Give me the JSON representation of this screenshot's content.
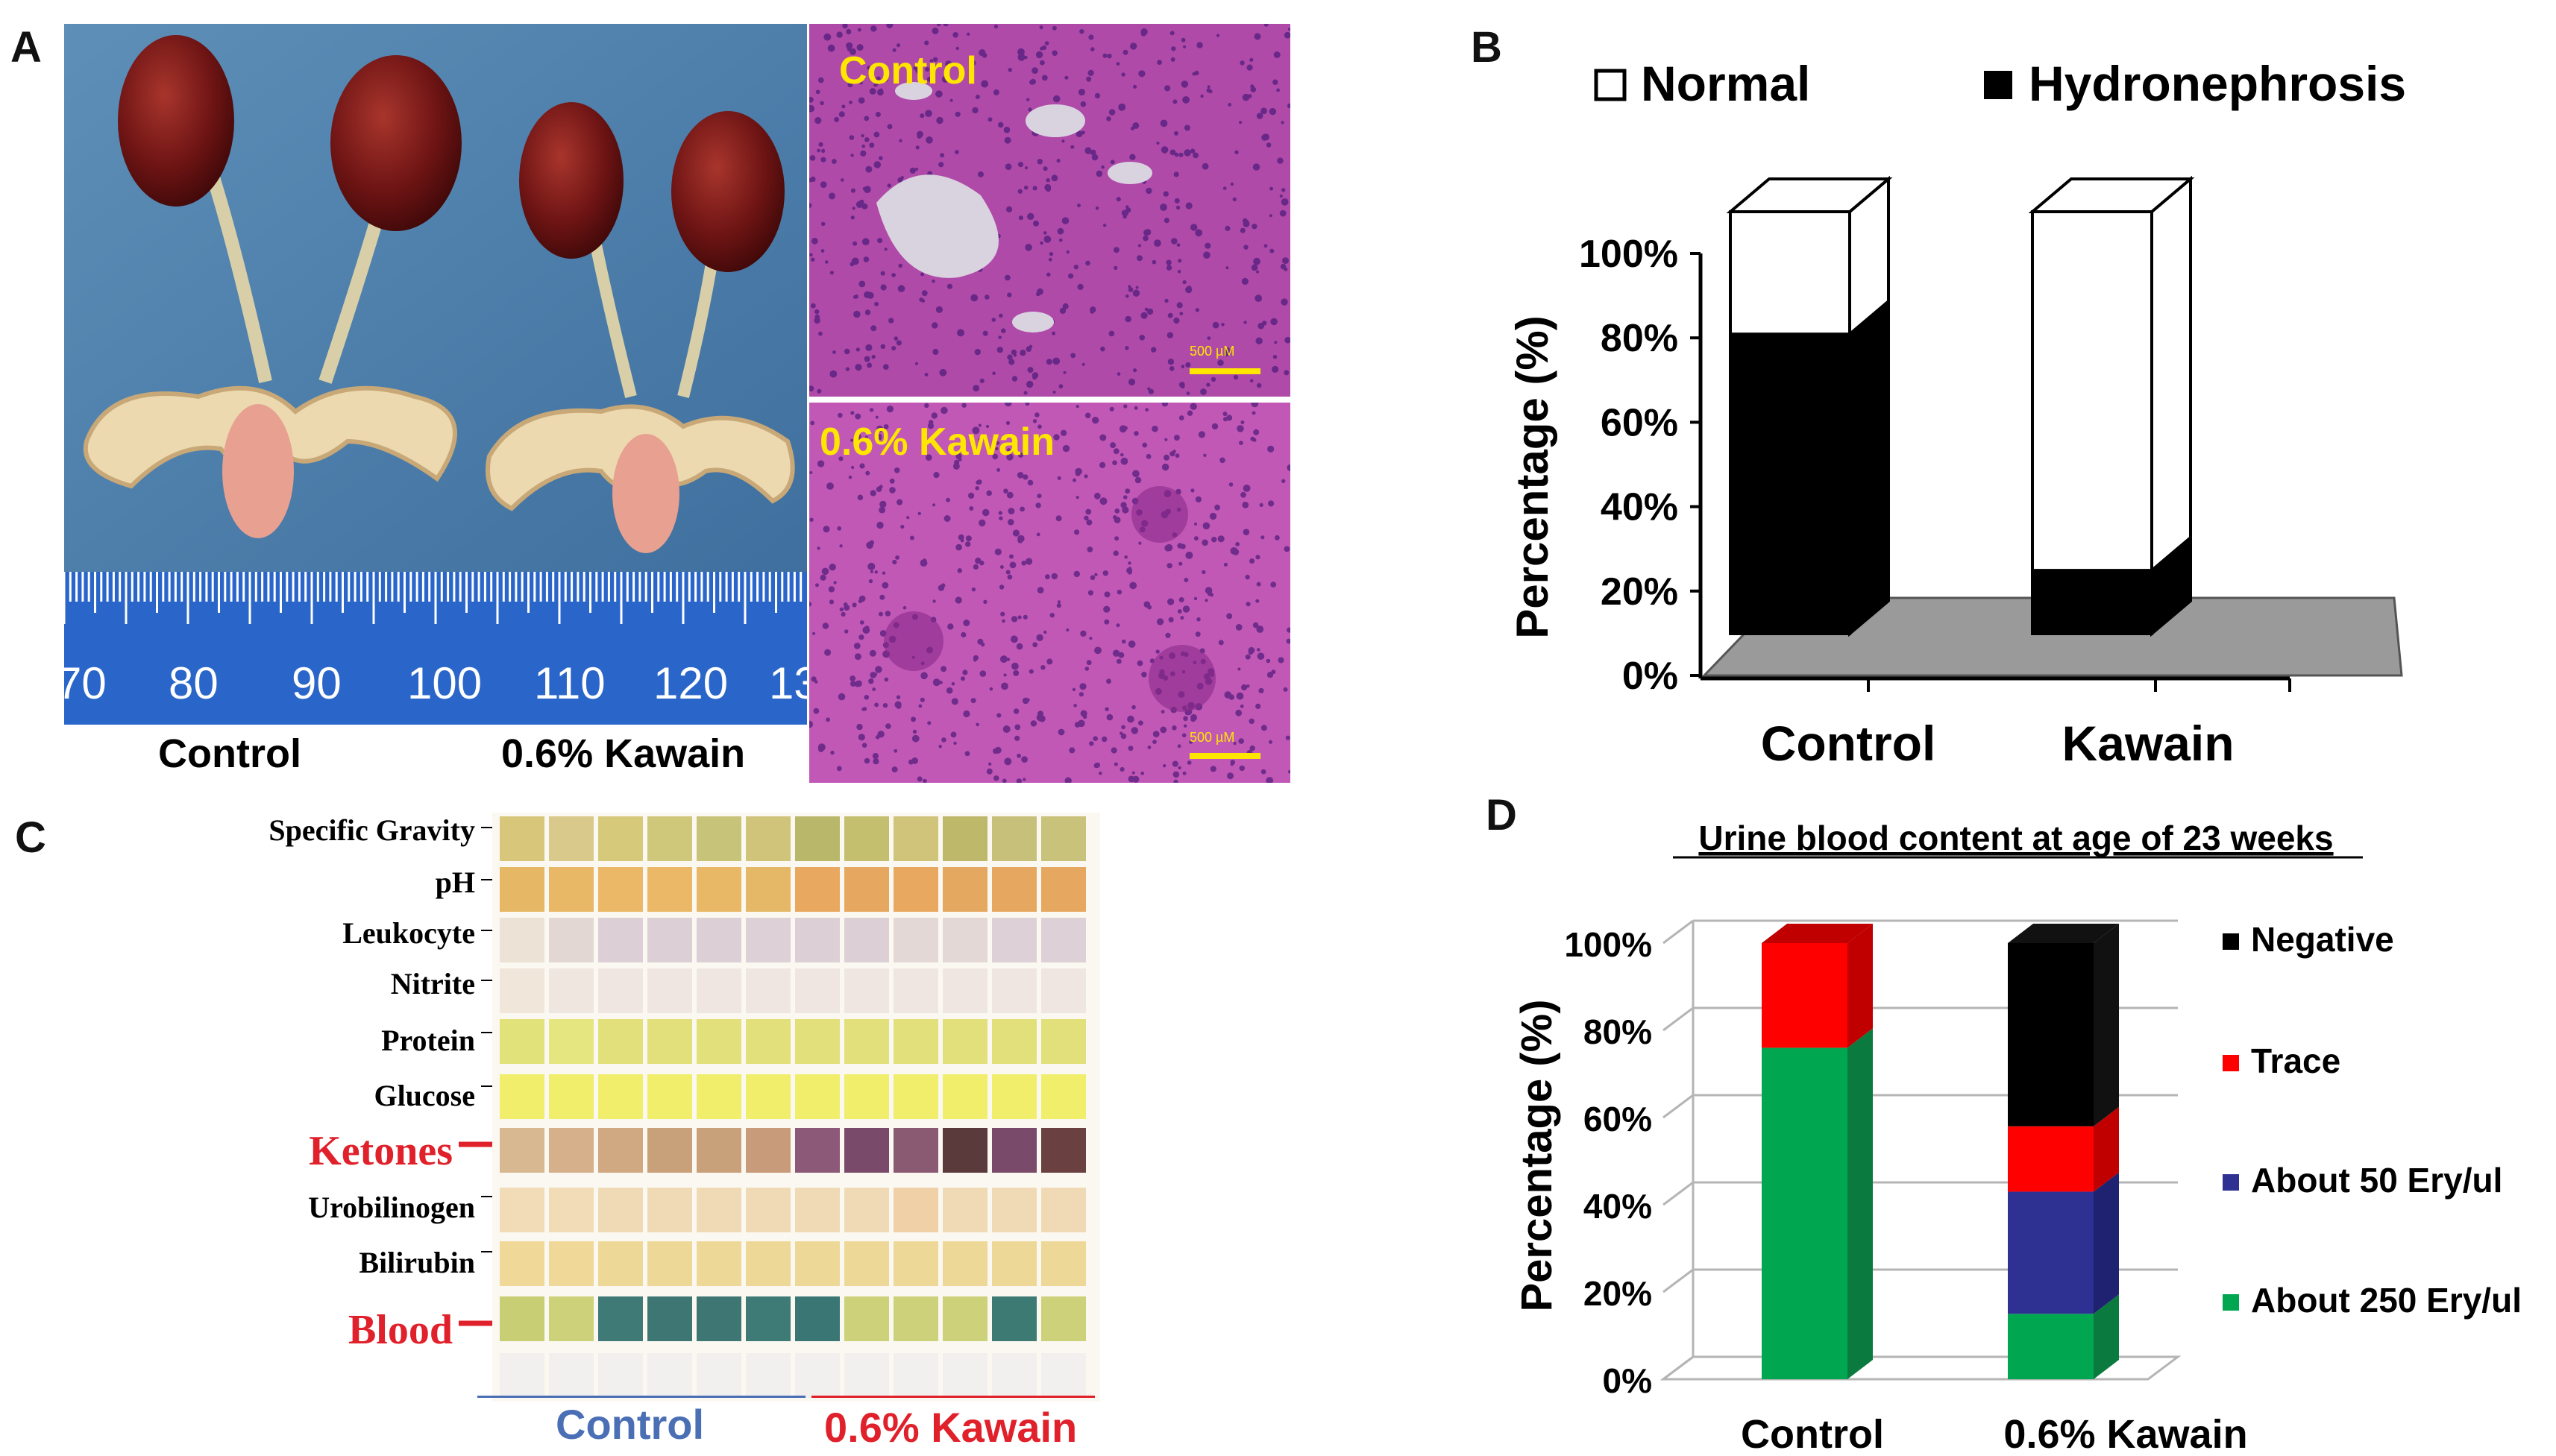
{
  "panels": {
    "a": "A",
    "b": "B",
    "c": "C",
    "d": "D"
  },
  "panel_a": {
    "ruler_numbers": [
      "70",
      "80",
      "90",
      "100",
      "110",
      "120",
      "13"
    ],
    "photo_labels": [
      "Control",
      "0.6% Kawain"
    ],
    "histology_labels": [
      "Control",
      "0.6% Kawain"
    ],
    "scale_bar": "500 µM"
  },
  "panel_c": {
    "rows": [
      "Specific Gravity",
      "pH",
      "Leukocyte",
      "Nitrite",
      "Protein",
      "Glucose",
      "Ketones",
      "Urobilinogen",
      "Bilirubin",
      "Blood"
    ],
    "highlighted": [
      "Ketones",
      "Blood"
    ],
    "group_labels": [
      "Control",
      "0.6% Kawain"
    ],
    "colors": {
      "control_label": "#4a6fb5",
      "kawain_label": "#e0202a",
      "highlight": "#e0202a"
    }
  },
  "chart_data": [
    {
      "type": "bar",
      "panel": "B",
      "stacked": true,
      "three_d": true,
      "categories": [
        "Control",
        "Kawain"
      ],
      "series": [
        {
          "name": "Hydronephrosis",
          "values": [
            71,
            15
          ],
          "color": "#000000"
        },
        {
          "name": "Normal",
          "values": [
            29,
            85
          ],
          "color": "#ffffff"
        }
      ],
      "legend": [
        "Normal",
        "Hydronephrosis"
      ],
      "legend_placement": "top",
      "ylabel": "Percentage (%)",
      "ylim": [
        0,
        100
      ],
      "yticks": [
        "0%",
        "20%",
        "40%",
        "60%",
        "80%",
        "100%"
      ]
    },
    {
      "type": "bar",
      "panel": "D",
      "stacked": true,
      "three_d": true,
      "title": "Urine blood content at age of 23 weeks",
      "categories": [
        "Control",
        "0.6% Kawain"
      ],
      "series": [
        {
          "name": "About 250 Ery/ul",
          "values": [
            76,
            15
          ],
          "color": "#00a650"
        },
        {
          "name": "About 50 Ery/ul",
          "values": [
            0,
            28
          ],
          "color": "#2e3192"
        },
        {
          "name": "Trace",
          "values": [
            24,
            15
          ],
          "color": "#ff0000"
        },
        {
          "name": "Negative",
          "values": [
            0,
            42
          ],
          "color": "#000000"
        }
      ],
      "legend": [
        "Negative",
        "Trace",
        "About 50 Ery/ul",
        "About 250 Ery/ul"
      ],
      "legend_placement": "right",
      "ylabel": "Percentage (%)",
      "ylim": [
        0,
        100
      ],
      "yticks": [
        "0%",
        "20%",
        "40%",
        "60%",
        "80%",
        "100%"
      ]
    }
  ]
}
